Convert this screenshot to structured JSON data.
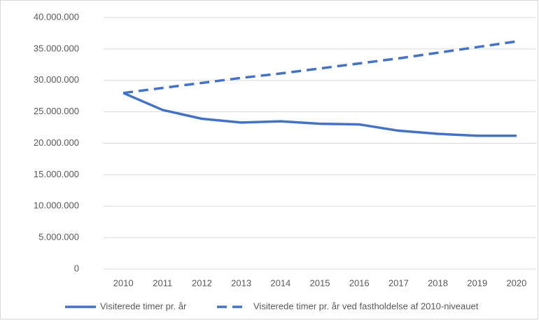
{
  "chart_data": {
    "type": "line",
    "categories": [
      "2010",
      "2011",
      "2012",
      "2013",
      "2014",
      "2015",
      "2016",
      "2017",
      "2018",
      "2019",
      "2020"
    ],
    "series": [
      {
        "name": "Visiterede timer pr. år",
        "color": "#4472c4",
        "style": "solid",
        "values": [
          28000000,
          25300000,
          23900000,
          23300000,
          23500000,
          23100000,
          23000000,
          22000000,
          21500000,
          21200000,
          21200000
        ]
      },
      {
        "name": "Visiterede timer pr. år ved fastholdelse af 2010-niveauet",
        "color": "#4472c4",
        "style": "dashed",
        "values": [
          28000000,
          28800000,
          29600000,
          30400000,
          31100000,
          31900000,
          32700000,
          33500000,
          34400000,
          35300000,
          36200000
        ]
      }
    ],
    "ylim": [
      0,
      40000000
    ],
    "yticks": [
      0,
      {
        "value": 5000000,
        "label": "5.000.000"
      },
      {
        "value": 10000000,
        "label": "10.000.000"
      },
      {
        "value": 15000000,
        "label": "15.000.000"
      },
      {
        "value": 20000000,
        "label": "20.000.000"
      },
      {
        "value": 25000000,
        "label": "25.000.000"
      },
      {
        "value": 30000000,
        "label": "30.000.000"
      },
      {
        "value": 35000000,
        "label": "35.000.000"
      },
      {
        "value": 40000000,
        "label": "40.000.000"
      }
    ],
    "grid": true,
    "legend": "bottom"
  }
}
